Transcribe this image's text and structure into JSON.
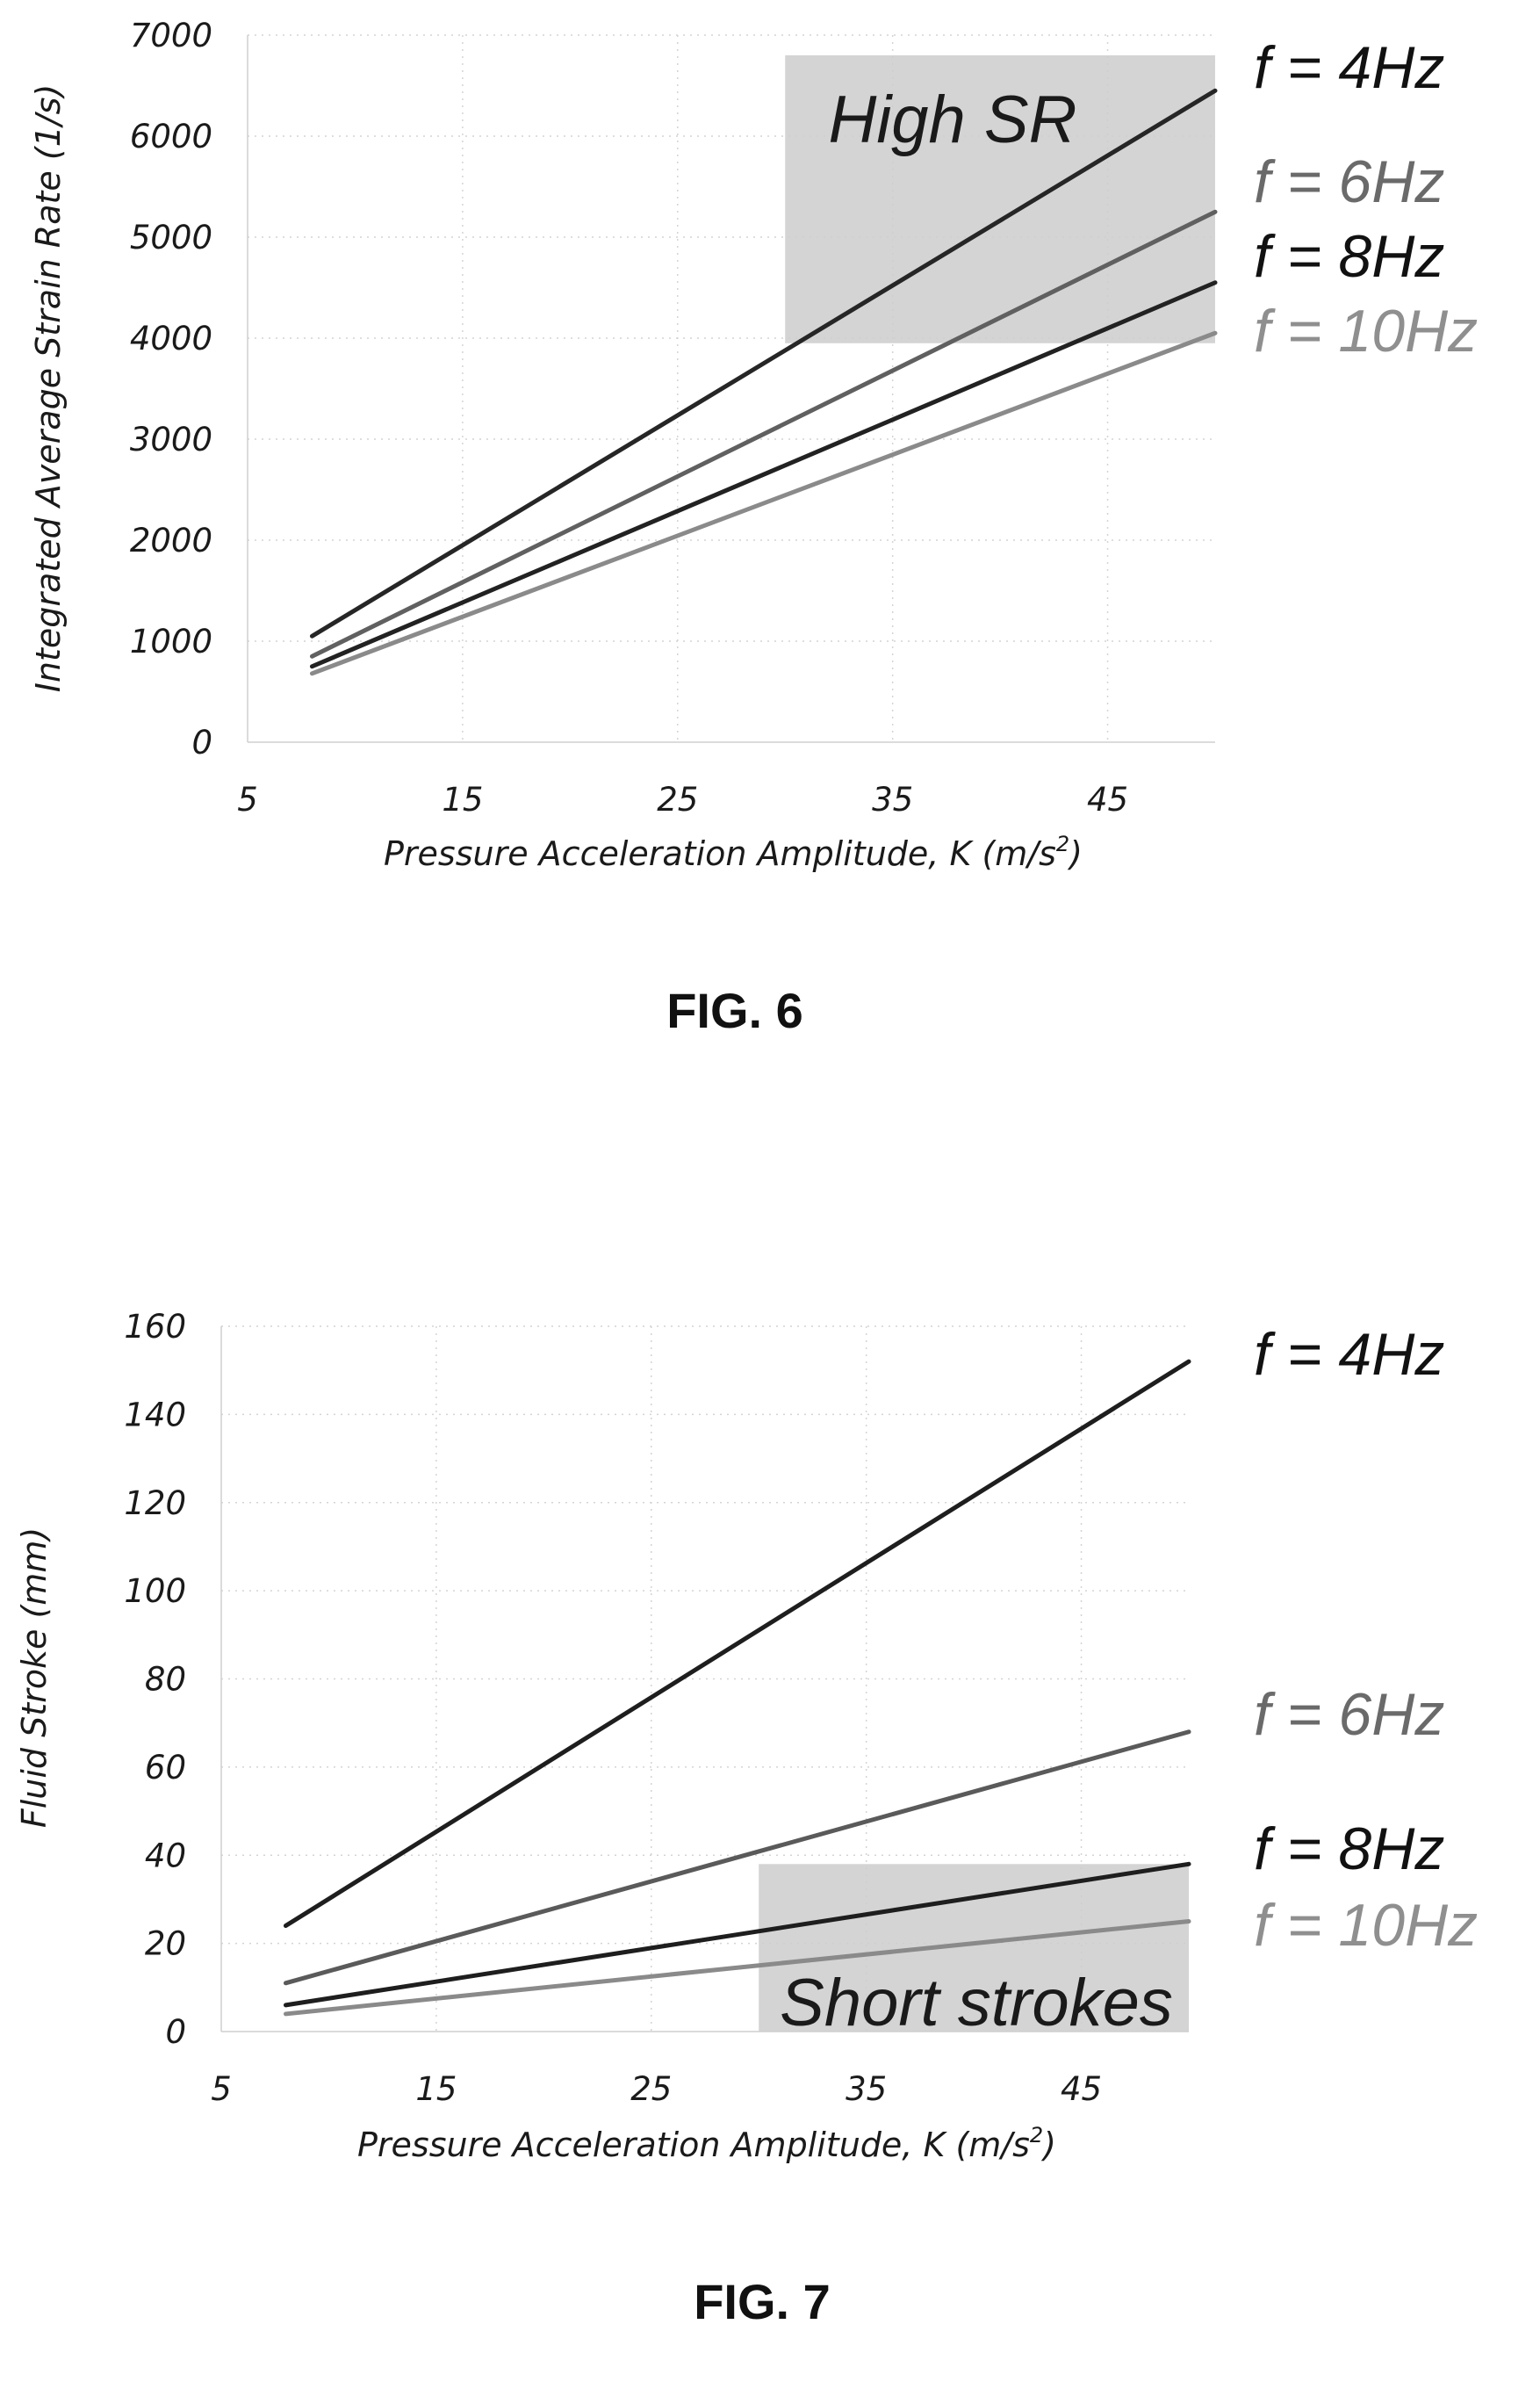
{
  "chart_data": [
    {
      "type": "line",
      "title": "FIG. 6",
      "xlabel": "Pressure Acceleration Amplitude, K (m/s",
      "xlabel_sup": "2",
      "xlabel_tail": ")",
      "ylabel": "Integrated Average Strain Rate (1/s)",
      "xlim": [
        5,
        50
      ],
      "ylim": [
        0,
        7000
      ],
      "xticks": [
        5,
        15,
        25,
        35,
        45
      ],
      "yticks": [
        0,
        1000,
        2000,
        3000,
        4000,
        5000,
        6000,
        7000
      ],
      "grid": true,
      "legend_position": "right",
      "region": {
        "label": "High SR",
        "x": [
          30,
          50
        ],
        "y": [
          3950,
          6800
        ],
        "color": "#cccccc"
      },
      "series": [
        {
          "name": "f = 4Hz",
          "color": "#262626",
          "label_color": "#111111",
          "x": [
            8,
            50
          ],
          "y": [
            1050,
            6450
          ]
        },
        {
          "name": "f = 6Hz",
          "color": "#606060",
          "label_color": "#6a6a6a",
          "x": [
            8,
            50
          ],
          "y": [
            850,
            5250
          ]
        },
        {
          "name": "f = 8Hz",
          "color": "#222222",
          "label_color": "#111111",
          "x": [
            8,
            50
          ],
          "y": [
            750,
            4550
          ]
        },
        {
          "name": "f = 10Hz",
          "color": "#8a8a8a",
          "label_color": "#8f8f8f",
          "x": [
            8,
            50
          ],
          "y": [
            680,
            4050
          ]
        }
      ]
    },
    {
      "type": "line",
      "title": "FIG. 7",
      "xlabel": "Pressure Acceleration Amplitude, K (m/s",
      "xlabel_sup": "2",
      "xlabel_tail": ")",
      "ylabel": "Fluid Stroke (mm)",
      "xlim": [
        5,
        50
      ],
      "ylim": [
        0,
        160
      ],
      "xticks": [
        5,
        15,
        25,
        35,
        45
      ],
      "yticks": [
        0,
        20,
        40,
        60,
        80,
        100,
        120,
        140,
        160
      ],
      "grid": true,
      "legend_position": "right",
      "region": {
        "label": "Short strokes",
        "x": [
          30,
          50
        ],
        "y": [
          0,
          38
        ],
        "color": "#cccccc"
      },
      "series": [
        {
          "name": "f = 4Hz",
          "color": "#1e1e1e",
          "label_color": "#111111",
          "x": [
            8,
            50
          ],
          "y": [
            24,
            152
          ]
        },
        {
          "name": "f = 6Hz",
          "color": "#5a5a5a",
          "label_color": "#6a6a6a",
          "x": [
            8,
            50
          ],
          "y": [
            11,
            68
          ]
        },
        {
          "name": "f = 8Hz",
          "color": "#1e1e1e",
          "label_color": "#111111",
          "x": [
            8,
            50
          ],
          "y": [
            6,
            38
          ]
        },
        {
          "name": "f = 10Hz",
          "color": "#8a8a8a",
          "label_color": "#8f8f8f",
          "x": [
            8,
            50
          ],
          "y": [
            4,
            25
          ]
        }
      ]
    }
  ]
}
